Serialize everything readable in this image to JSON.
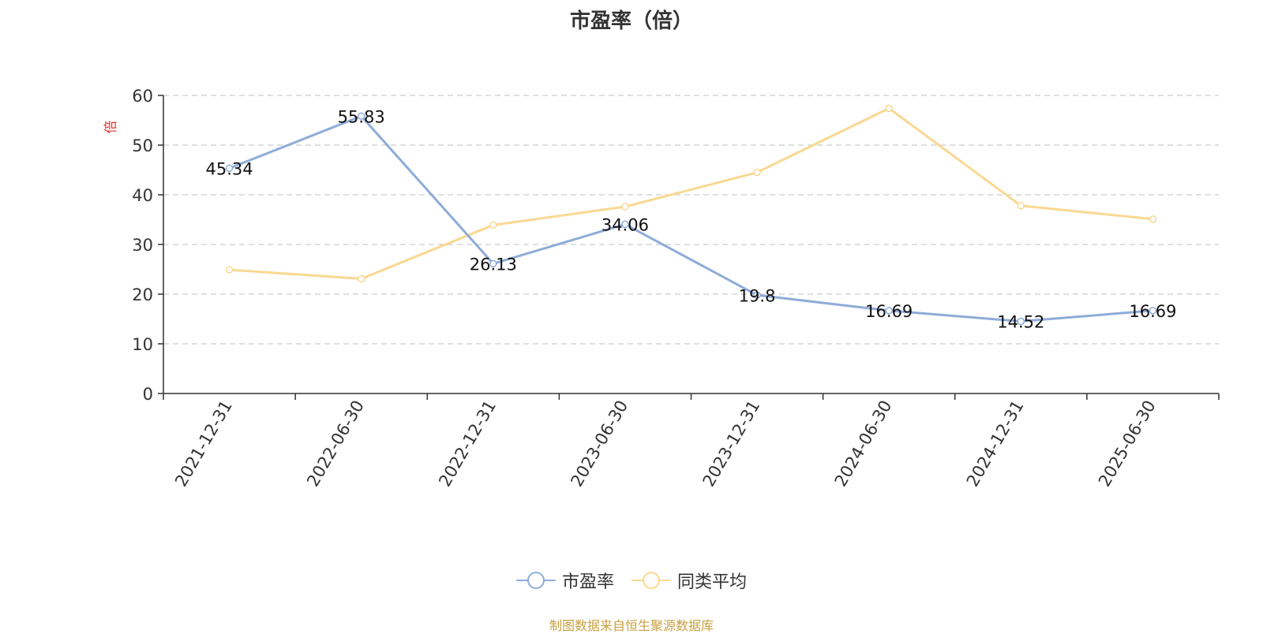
{
  "title": "市盈率（倍）",
  "source_note": "制图数据来自恒生聚源数据库",
  "colors": {
    "series_pe": "#8eacd8",
    "series_avg": "#fad891",
    "ylabel": "#e03030",
    "source": "#c8a040"
  },
  "legend": [
    {
      "label": "市盈率",
      "icon": "circle-line-icon"
    },
    {
      "label": "同类平均",
      "icon": "circle-line-icon"
    }
  ],
  "chart_data": {
    "type": "line",
    "title": "市盈率（倍）",
    "xlabel": "",
    "ylabel": "倍",
    "categories": [
      "2021-12-31",
      "2022-06-30",
      "2022-12-31",
      "2023-06-30",
      "2023-12-31",
      "2024-06-30",
      "2024-12-31",
      "2025-06-30"
    ],
    "ylim": [
      0,
      60
    ],
    "yticks": [
      0,
      10,
      20,
      30,
      40,
      50,
      60
    ],
    "grid": true,
    "legend_position": "bottom",
    "series": [
      {
        "name": "市盈率",
        "values": [
          45.34,
          55.83,
          26.13,
          34.06,
          19.8,
          16.69,
          14.52,
          16.69
        ],
        "show_labels": true
      },
      {
        "name": "同类平均",
        "values": [
          24.9,
          23.1,
          33.9,
          37.6,
          44.5,
          57.4,
          37.8,
          35.1
        ],
        "show_labels": false
      }
    ]
  }
}
